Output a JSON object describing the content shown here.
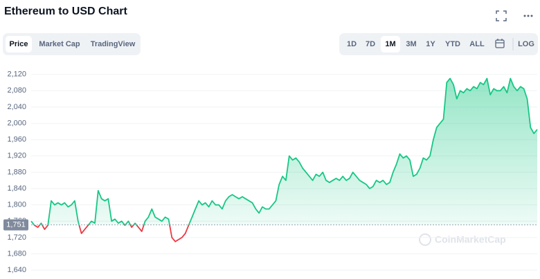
{
  "title": "Ethereum to USD Chart",
  "tabs": [
    "Price",
    "Market Cap",
    "TradingView"
  ],
  "selected_tab": 0,
  "ranges": [
    "1D",
    "7D",
    "1M",
    "3M",
    "1Y",
    "YTD",
    "ALL"
  ],
  "selected_range": 2,
  "log": "LOG",
  "watermark": "CoinMarketCap",
  "chart_data": {
    "type": "line",
    "values": [
      1760,
      1750,
      1745,
      1755,
      1740,
      1750,
      1810,
      1800,
      1805,
      1800,
      1805,
      1795,
      1800,
      1810,
      1760,
      1730,
      1740,
      1750,
      1760,
      1755,
      1835,
      1815,
      1810,
      1815,
      1760,
      1765,
      1755,
      1760,
      1750,
      1760,
      1745,
      1755,
      1745,
      1735,
      1760,
      1770,
      1790,
      1770,
      1765,
      1760,
      1770,
      1765,
      1720,
      1710,
      1715,
      1720,
      1730,
      1750,
      1770,
      1790,
      1810,
      1800,
      1805,
      1795,
      1810,
      1800,
      1800,
      1790,
      1810,
      1820,
      1825,
      1820,
      1815,
      1820,
      1815,
      1810,
      1805,
      1790,
      1780,
      1795,
      1790,
      1790,
      1800,
      1810,
      1850,
      1870,
      1860,
      1920,
      1910,
      1915,
      1905,
      1890,
      1880,
      1870,
      1860,
      1875,
      1870,
      1880,
      1860,
      1855,
      1860,
      1865,
      1860,
      1870,
      1860,
      1865,
      1880,
      1870,
      1860,
      1855,
      1850,
      1840,
      1845,
      1860,
      1855,
      1860,
      1850,
      1855,
      1880,
      1900,
      1925,
      1915,
      1920,
      1910,
      1870,
      1875,
      1890,
      1915,
      1910,
      1920,
      1960,
      1990,
      2000,
      2010,
      2100,
      2110,
      2095,
      2060,
      2080,
      2075,
      2085,
      2080,
      2090,
      2085,
      2100,
      2095,
      2110,
      2070,
      2085,
      2080,
      2080,
      2090,
      2075,
      2110,
      2090,
      2080,
      2090,
      2085,
      2060,
      1990,
      1975,
      1985
    ],
    "baseline": {
      "value": 1751,
      "label": "1,751"
    },
    "up_color": "#16c784",
    "down_color": "#ea3943",
    "ylim": [
      1625,
      2150
    ],
    "yticks": [
      {
        "value": 1640,
        "label": "1,640"
      },
      {
        "value": 1680,
        "label": "1,680"
      },
      {
        "value": 1720,
        "label": "1,720"
      },
      {
        "value": 1760,
        "label": "1,760"
      },
      {
        "value": 1800,
        "label": "1,800"
      },
      {
        "value": 1840,
        "label": "1,840"
      },
      {
        "value": 1880,
        "label": "1,880"
      },
      {
        "value": 1920,
        "label": "1,920"
      },
      {
        "value": 1960,
        "label": "1,960"
      },
      {
        "value": 2000,
        "label": "2,000"
      },
      {
        "value": 2040,
        "label": "2,040"
      },
      {
        "value": 2080,
        "label": "2,080"
      },
      {
        "value": 2120,
        "label": "2,120"
      }
    ],
    "grid": true
  }
}
